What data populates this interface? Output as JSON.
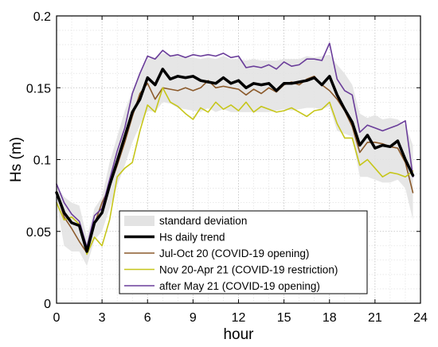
{
  "chart_data": {
    "type": "line",
    "xlabel": "hour",
    "ylabel": "Hs (m)",
    "xlim": [
      0,
      24
    ],
    "ylim": [
      0,
      0.2
    ],
    "x_ticks": [
      0,
      3,
      6,
      9,
      12,
      15,
      18,
      21,
      24
    ],
    "y_ticks": [
      0,
      0.05,
      0.1,
      0.15,
      0.2
    ],
    "x_tick_labels": [
      "0",
      "3",
      "6",
      "9",
      "12",
      "15",
      "18",
      "21",
      "24"
    ],
    "y_tick_labels": [
      "0",
      "0.05",
      "0.1",
      "0.15",
      "0.2"
    ],
    "grid": true,
    "legend_position": "bottom-right",
    "x": [
      0,
      0.5,
      1,
      1.5,
      2,
      2.5,
      3,
      3.5,
      4,
      4.5,
      5,
      5.5,
      6,
      6.5,
      7,
      7.5,
      8,
      8.5,
      9,
      9.5,
      10,
      10.5,
      11,
      11.5,
      12,
      12.5,
      13,
      13.5,
      14,
      14.5,
      15,
      15.5,
      16,
      16.5,
      17,
      17.5,
      18,
      18.5,
      19,
      19.5,
      20,
      20.5,
      21,
      21.5,
      22,
      22.5,
      23,
      23.5
    ],
    "band": {
      "name": "standard deviation",
      "color": "#e3e3e3",
      "upper": [
        0.082,
        0.074,
        0.07,
        0.068,
        0.046,
        0.066,
        0.074,
        0.098,
        0.116,
        0.134,
        0.148,
        0.16,
        0.17,
        0.171,
        0.174,
        0.173,
        0.172,
        0.171,
        0.171,
        0.17,
        0.171,
        0.17,
        0.172,
        0.17,
        0.17,
        0.169,
        0.17,
        0.169,
        0.169,
        0.169,
        0.17,
        0.17,
        0.17,
        0.172,
        0.171,
        0.172,
        0.173,
        0.166,
        0.16,
        0.152,
        0.132,
        0.129,
        0.131,
        0.128,
        0.129,
        0.128,
        0.124,
        0.11
      ],
      "lower": [
        0.07,
        0.04,
        0.036,
        0.036,
        0.026,
        0.044,
        0.05,
        0.066,
        0.082,
        0.096,
        0.112,
        0.124,
        0.134,
        0.133,
        0.14,
        0.139,
        0.136,
        0.135,
        0.134,
        0.133,
        0.136,
        0.133,
        0.135,
        0.133,
        0.133,
        0.133,
        0.133,
        0.133,
        0.133,
        0.134,
        0.135,
        0.134,
        0.135,
        0.136,
        0.136,
        0.135,
        0.137,
        0.12,
        0.118,
        0.116,
        0.088,
        0.088,
        0.086,
        0.084,
        0.084,
        0.086,
        0.08,
        0.058
      ]
    },
    "series": [
      {
        "name": "Hs daily trend",
        "color": "#000000",
        "width": 3.5,
        "values": [
          0.077,
          0.063,
          0.056,
          0.054,
          0.036,
          0.056,
          0.063,
          0.082,
          0.099,
          0.116,
          0.133,
          0.142,
          0.157,
          0.152,
          0.163,
          0.156,
          0.158,
          0.157,
          0.158,
          0.155,
          0.154,
          0.153,
          0.157,
          0.153,
          0.155,
          0.15,
          0.153,
          0.152,
          0.153,
          0.148,
          0.153,
          0.153,
          0.154,
          0.155,
          0.157,
          0.152,
          0.158,
          0.145,
          0.135,
          0.126,
          0.11,
          0.117,
          0.108,
          0.11,
          0.109,
          0.113,
          0.1,
          0.089
        ]
      },
      {
        "name": "Jul-Oct 20 (COVID-19 opening)",
        "color": "#8b5a2b",
        "width": 1.6,
        "values": [
          0.077,
          0.06,
          0.052,
          0.043,
          0.035,
          0.055,
          0.07,
          0.081,
          0.096,
          0.112,
          0.13,
          0.146,
          0.153,
          0.142,
          0.15,
          0.149,
          0.148,
          0.15,
          0.148,
          0.15,
          0.155,
          0.15,
          0.151,
          0.15,
          0.149,
          0.145,
          0.149,
          0.146,
          0.15,
          0.147,
          0.152,
          0.154,
          0.152,
          0.156,
          0.158,
          0.152,
          0.148,
          0.142,
          0.134,
          0.123,
          0.105,
          0.112,
          0.112,
          0.111,
          0.109,
          0.108,
          0.098,
          0.077
        ]
      },
      {
        "name": "Nov 20-Apr 21 (COVID-19 restriction)",
        "color": "#c6c61a",
        "width": 1.6,
        "values": [
          0.07,
          0.058,
          0.06,
          0.055,
          0.034,
          0.046,
          0.04,
          0.058,
          0.088,
          0.094,
          0.098,
          0.12,
          0.138,
          0.133,
          0.15,
          0.14,
          0.137,
          0.132,
          0.128,
          0.136,
          0.133,
          0.14,
          0.135,
          0.138,
          0.134,
          0.14,
          0.133,
          0.137,
          0.135,
          0.133,
          0.134,
          0.136,
          0.133,
          0.13,
          0.134,
          0.135,
          0.14,
          0.125,
          0.115,
          0.115,
          0.096,
          0.1,
          0.094,
          0.088,
          0.091,
          0.09,
          0.088,
          0.092
        ]
      },
      {
        "name": "after May 21 (COVID-19 opening)",
        "color": "#6a3d9a",
        "width": 1.6,
        "values": [
          0.083,
          0.07,
          0.062,
          0.057,
          0.039,
          0.061,
          0.066,
          0.086,
          0.106,
          0.122,
          0.146,
          0.16,
          0.172,
          0.17,
          0.176,
          0.172,
          0.173,
          0.171,
          0.173,
          0.172,
          0.173,
          0.172,
          0.174,
          0.171,
          0.172,
          0.164,
          0.165,
          0.164,
          0.166,
          0.163,
          0.168,
          0.165,
          0.166,
          0.17,
          0.17,
          0.169,
          0.181,
          0.156,
          0.148,
          0.145,
          0.119,
          0.124,
          0.122,
          0.12,
          0.122,
          0.124,
          0.127,
          0.088
        ]
      }
    ],
    "legend": [
      {
        "label": "standard deviation",
        "kind": "patch",
        "color": "#e3e3e3"
      },
      {
        "label": "Hs daily trend",
        "kind": "line",
        "color": "#000000",
        "width": 3.5
      },
      {
        "label": "Jul-Oct 20 (COVID-19 opening)",
        "kind": "line",
        "color": "#8b5a2b",
        "width": 1.6
      },
      {
        "label": "Nov 20-Apr 21 (COVID-19 restriction)",
        "kind": "line",
        "color": "#c6c61a",
        "width": 1.6
      },
      {
        "label": "after May 21 (COVID-19 opening)",
        "kind": "line",
        "color": "#6a3d9a",
        "width": 1.6
      }
    ]
  }
}
